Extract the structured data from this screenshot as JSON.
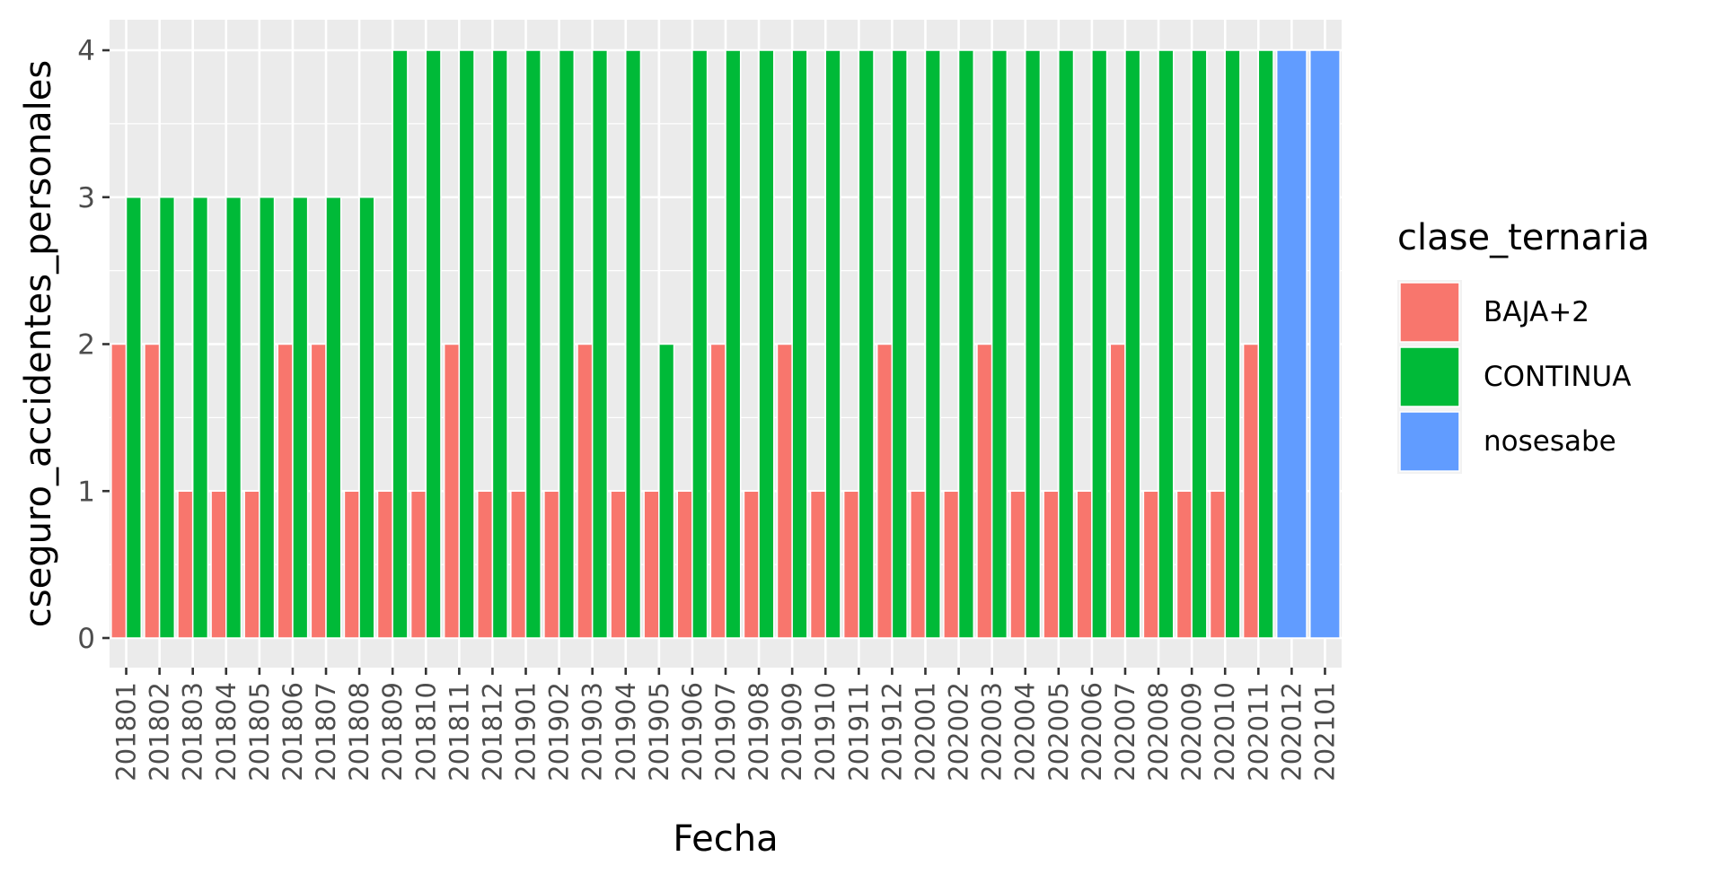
{
  "chart_data": {
    "type": "bar",
    "xlabel": "Fecha",
    "ylabel": "cseguro_accidentes_personales",
    "ylim": [
      0,
      4.2
    ],
    "y_ticks": [
      "0",
      "1",
      "2",
      "3",
      "4"
    ],
    "grid": true,
    "legend_position": "right",
    "legend_title": "clase_ternaria",
    "categories": [
      "201801",
      "201802",
      "201803",
      "201804",
      "201805",
      "201806",
      "201807",
      "201808",
      "201809",
      "201810",
      "201811",
      "201812",
      "201901",
      "201902",
      "201903",
      "201904",
      "201905",
      "201906",
      "201907",
      "201908",
      "201909",
      "201910",
      "201911",
      "201912",
      "202001",
      "202002",
      "202003",
      "202004",
      "202005",
      "202006",
      "202007",
      "202008",
      "202009",
      "202010",
      "202011",
      "202012",
      "202101"
    ],
    "series": [
      {
        "name": "BAJA+2",
        "color": "#F8766D",
        "values": [
          2,
          2,
          1,
          1,
          1,
          2,
          2,
          1,
          1,
          1,
          2,
          1,
          1,
          1,
          2,
          1,
          1,
          1,
          2,
          1,
          2,
          1,
          1,
          2,
          1,
          1,
          2,
          1,
          1,
          1,
          2,
          1,
          1,
          1,
          2,
          null,
          null
        ]
      },
      {
        "name": "CONTINUA",
        "color": "#00BA38",
        "values": [
          3,
          3,
          3,
          3,
          3,
          3,
          3,
          3,
          4,
          4,
          4,
          4,
          4,
          4,
          4,
          4,
          2,
          4,
          4,
          4,
          4,
          4,
          4,
          4,
          4,
          4,
          4,
          4,
          4,
          4,
          4,
          4,
          4,
          4,
          4,
          null,
          null
        ]
      },
      {
        "name": "nosesabe",
        "color": "#619CFF",
        "values": [
          null,
          null,
          null,
          null,
          null,
          null,
          null,
          null,
          null,
          null,
          null,
          null,
          null,
          null,
          null,
          null,
          null,
          null,
          null,
          null,
          null,
          null,
          null,
          null,
          null,
          null,
          null,
          null,
          null,
          null,
          null,
          null,
          null,
          null,
          null,
          4,
          4
        ]
      }
    ]
  }
}
